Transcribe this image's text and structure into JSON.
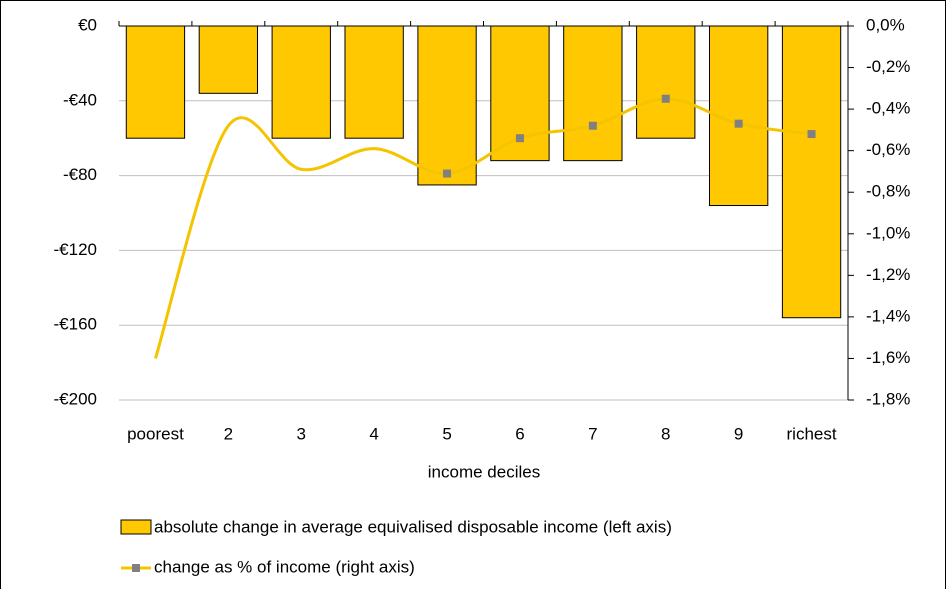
{
  "chart_data": {
    "type": "bar-line",
    "x_label": "income deciles",
    "categories": [
      "poorest",
      "2",
      "3",
      "4",
      "5",
      "6",
      "7",
      "8",
      "9",
      "richest"
    ],
    "series": [
      {
        "name": "absolute change in average equivalised disposable income (left axis)",
        "type": "bar",
        "color": "#ffc800",
        "values": [
          -60,
          -36,
          -60,
          -60,
          -85,
          -72,
          -72,
          -60,
          -96,
          -156
        ]
      },
      {
        "name": "change as % of income (right axis)",
        "type": "line",
        "axis": "y2",
        "color": "#f5c400",
        "marker_color": "#808080",
        "values": [
          -1.6,
          -0.48,
          -0.69,
          -0.59,
          -0.71,
          -0.54,
          -0.48,
          -0.35,
          -0.47,
          -0.52
        ]
      }
    ],
    "ylim": [
      -200,
      0
    ],
    "yticks": [
      {
        "value": 0,
        "label": "€0"
      },
      {
        "value": -40,
        "label": "-€40"
      },
      {
        "value": -80,
        "label": "-€80"
      },
      {
        "value": -120,
        "label": "-€120"
      },
      {
        "value": -160,
        "label": "-€160"
      },
      {
        "value": -200,
        "label": "-€200"
      }
    ],
    "y2lim": [
      -1.8,
      0
    ],
    "y2ticks": [
      {
        "value": 0,
        "label": "0,0%"
      },
      {
        "value": -0.2,
        "label": "-0,2%"
      },
      {
        "value": -0.4,
        "label": "-0,4%"
      },
      {
        "value": -0.6,
        "label": "-0,6%"
      },
      {
        "value": -0.8,
        "label": "-0,8%"
      },
      {
        "value": -1.0,
        "label": "-1,0%"
      },
      {
        "value": -1.2,
        "label": "-1,2%"
      },
      {
        "value": -1.4,
        "label": "-1,4%"
      },
      {
        "value": -1.6,
        "label": "-1,6%"
      },
      {
        "value": -1.8,
        "label": "-1,8%"
      }
    ],
    "grid": true
  }
}
